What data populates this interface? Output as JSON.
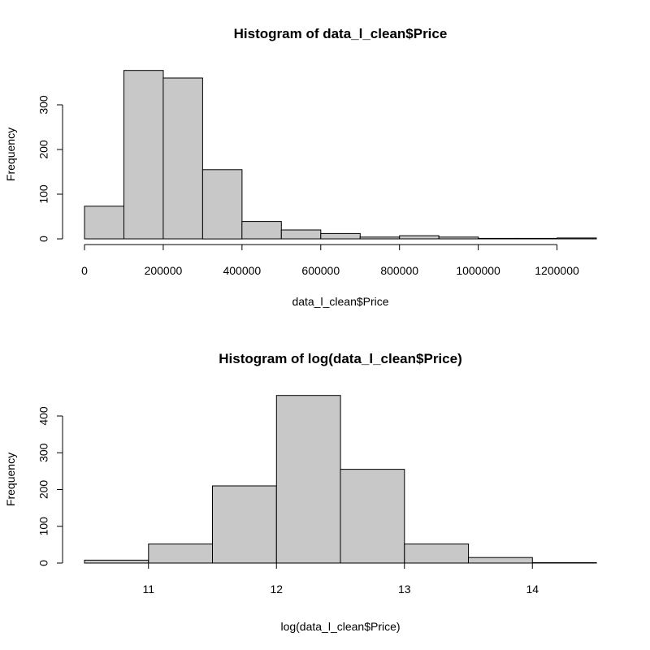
{
  "chart_data": [
    {
      "type": "bar",
      "title": "Histogram of data_l_clean$Price",
      "xlabel": "data_l_clean$Price",
      "ylabel": "Frequency",
      "bin_edges": [
        0,
        100000,
        200000,
        300000,
        400000,
        500000,
        600000,
        700000,
        800000,
        900000,
        1000000,
        1100000,
        1200000,
        1300000
      ],
      "values": [
        73,
        377,
        360,
        155,
        39,
        20,
        12,
        4,
        7,
        4,
        1,
        1,
        2
      ],
      "xlim": [
        0,
        1300000
      ],
      "ylim": [
        0,
        390
      ],
      "x_ticks": [
        0,
        200000,
        400000,
        600000,
        800000,
        1000000,
        1200000
      ],
      "x_tick_labels": [
        "0",
        "200000",
        "400000",
        "600000",
        "800000",
        "1000000",
        "1200000"
      ],
      "y_ticks": [
        0,
        100,
        200,
        300
      ],
      "y_tick_labels": [
        "0",
        "100",
        "200",
        "300"
      ]
    },
    {
      "type": "bar",
      "title": "Histogram of log(data_l_clean$Price)",
      "xlabel": "log(data_l_clean$Price)",
      "ylabel": "Frequency",
      "bin_edges": [
        10.5,
        11,
        11.5,
        12,
        12.5,
        13,
        13.5,
        14,
        14.5
      ],
      "values": [
        8,
        52,
        210,
        456,
        255,
        52,
        15,
        1
      ],
      "xlim": [
        10.5,
        14.5
      ],
      "ylim": [
        0,
        470
      ],
      "x_ticks": [
        11,
        12,
        13,
        14
      ],
      "x_tick_labels": [
        "11",
        "12",
        "13",
        "14"
      ],
      "y_ticks": [
        0,
        100,
        200,
        300,
        400
      ],
      "y_tick_labels": [
        "0",
        "100",
        "200",
        "300",
        "400"
      ]
    }
  ]
}
